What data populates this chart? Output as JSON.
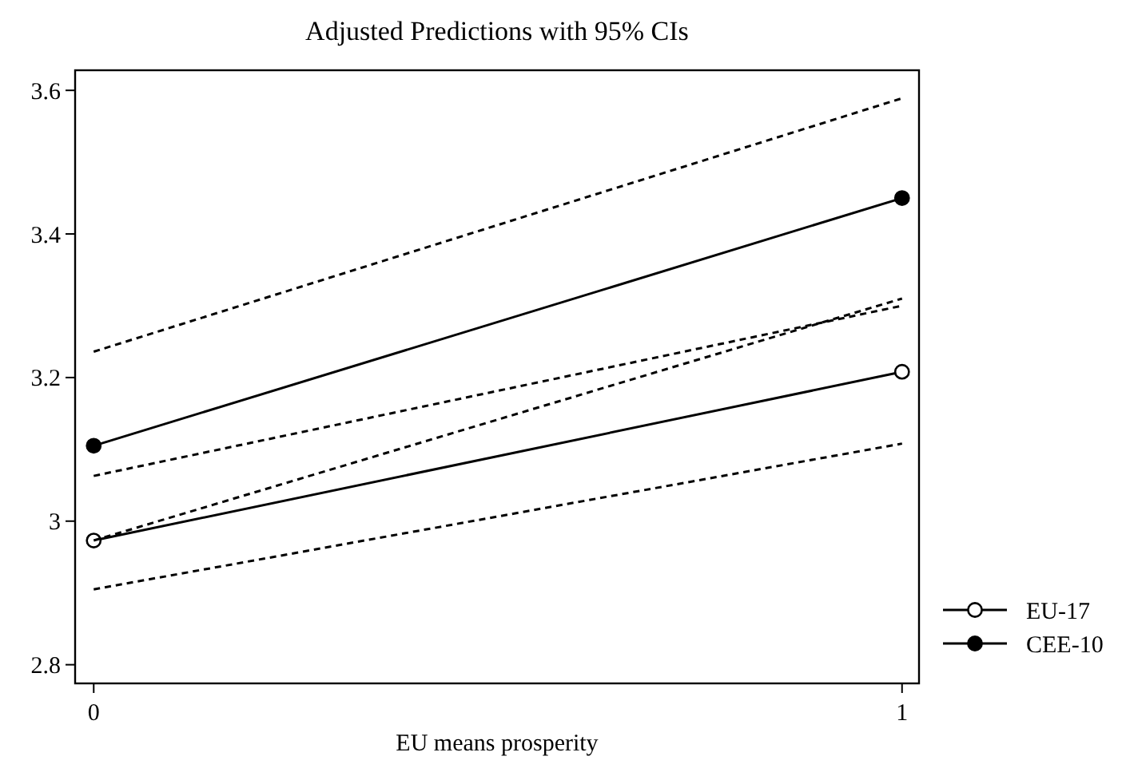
{
  "chart_data": {
    "type": "line",
    "title": "Adjusted Predictions with 95% CIs",
    "xlabel": "EU means prosperity",
    "x": [
      0,
      1
    ],
    "series": [
      {
        "name": "EU-17",
        "color": "#000000",
        "marker": "circle",
        "line_style": "solid",
        "values": [
          2.973,
          3.208
        ]
      },
      {
        "name": "CEE-10",
        "color": "#000000",
        "marker": "circle",
        "line_style": "solid",
        "values": [
          3.105,
          3.45
        ]
      },
      {
        "color": "#000000",
        "marker": "none",
        "line_style": "dashed",
        "values": [
          2.905,
          3.108
        ]
      },
      {
        "color": "#000000",
        "marker": "none",
        "line_style": "dashed",
        "values": [
          3.063,
          3.3
        ]
      },
      {
        "color": "#000000",
        "marker": "none",
        "line_style": "dashed",
        "values": [
          2.973,
          3.31
        ]
      },
      {
        "color": "#000000",
        "marker": "none",
        "line_style": "dashed",
        "values": [
          3.236,
          3.589
        ]
      }
    ],
    "xlim": [
      -0.023,
      1.021
    ],
    "xticks": [
      0,
      1
    ],
    "ylim": [
      2.774,
      3.628
    ],
    "yticks": [
      2.8,
      3,
      3.2,
      3.4,
      3.6
    ],
    "grid": false,
    "legend": "right"
  }
}
